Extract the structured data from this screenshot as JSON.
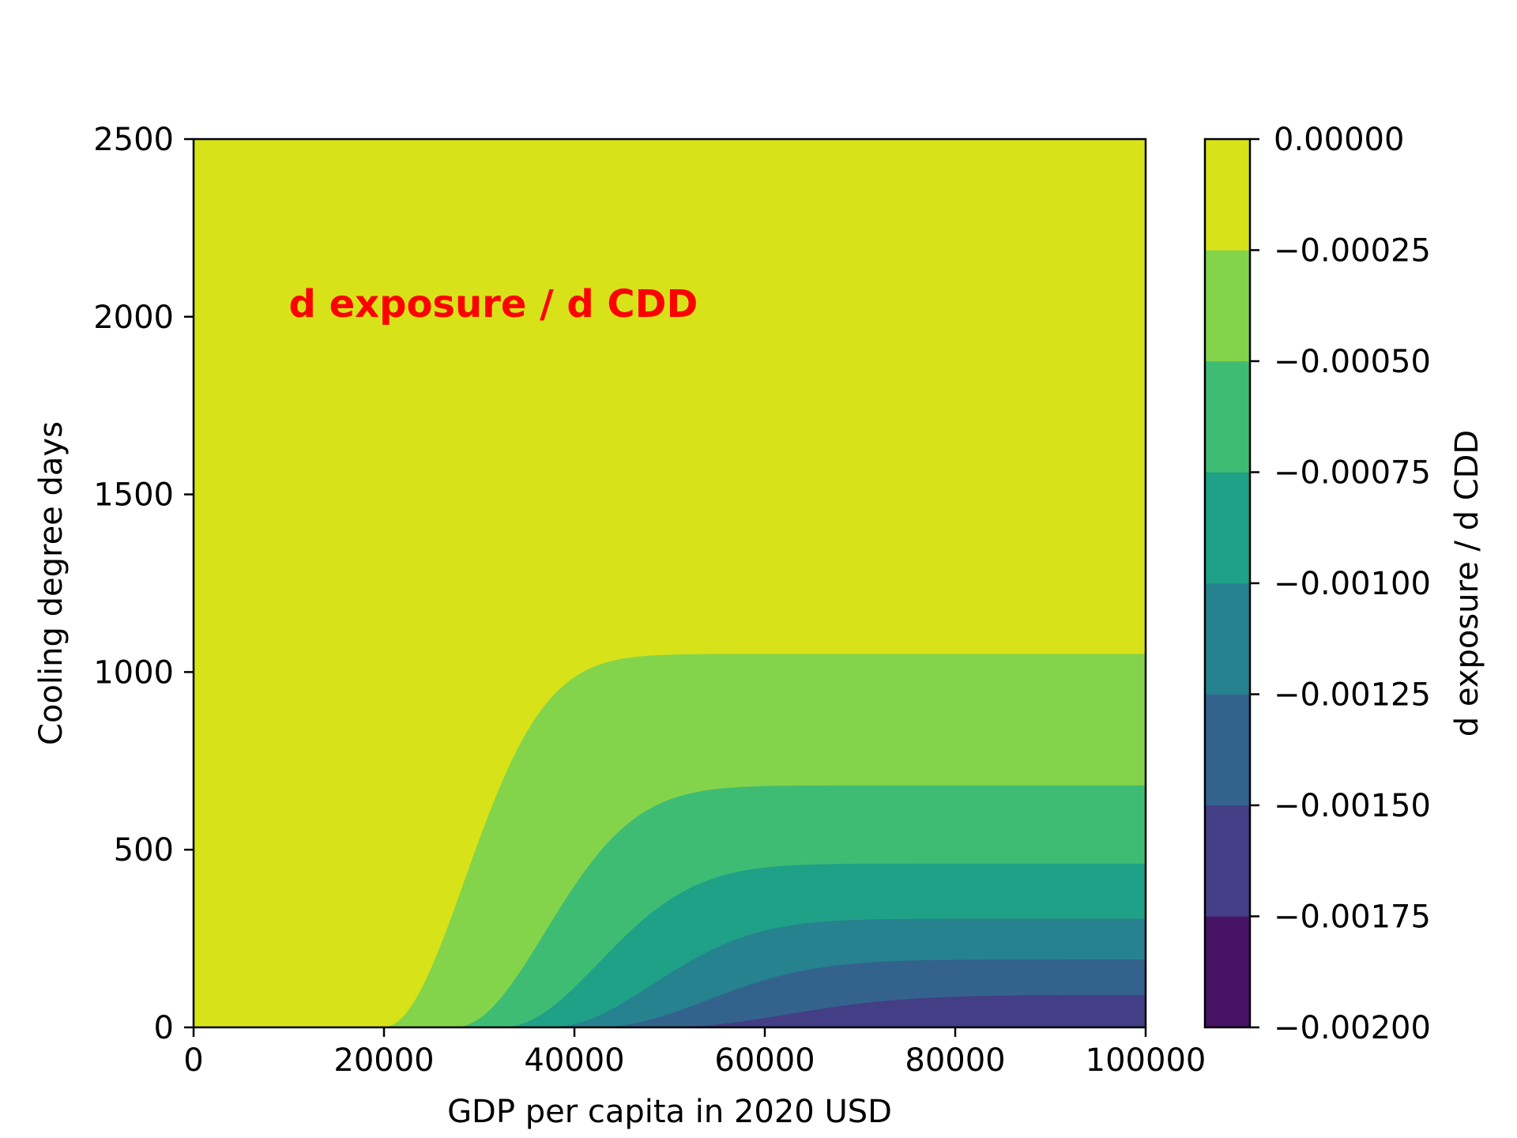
{
  "chart_data": {
    "type": "contour",
    "annotation": "d exposure / d CDD",
    "annotation_color": "#ff0000",
    "annotation_pos": {
      "x": 10000,
      "y": 2000
    },
    "xlabel": "GDP per capita in 2020 USD",
    "ylabel": "Cooling degree days",
    "xlim": [
      0,
      100000
    ],
    "ylim": [
      0,
      2500
    ],
    "x_ticks": [
      0,
      20000,
      40000,
      60000,
      80000,
      100000
    ],
    "x_tick_labels": [
      "0",
      "20000",
      "40000",
      "60000",
      "80000",
      "100000"
    ],
    "y_ticks": [
      0,
      500,
      1000,
      1500,
      2000,
      2500
    ],
    "y_tick_labels": [
      "0",
      "500",
      "1000",
      "1500",
      "2000",
      "2500"
    ],
    "colorbar": {
      "label": "d exposure / d CDD",
      "levels": [
        -0.002,
        -0.00175,
        -0.0015,
        -0.00125,
        -0.001,
        -0.00075,
        -0.0005,
        -0.00025,
        0.0
      ],
      "tick_labels": [
        "−0.00200",
        "−0.00175",
        "−0.00150",
        "−0.00125",
        "−0.00100",
        "−0.00075",
        "−0.00050",
        "−0.00025",
        "0.00000"
      ],
      "colors": [
        "#471365",
        "#433e85",
        "#33638d",
        "#26828e",
        "#1fa187",
        "#3fbc73",
        "#84d44b",
        "#d8e219"
      ]
    },
    "contour_boundaries": [
      {
        "level": -0.00025,
        "x_start": 20000,
        "y_plateau": 1050
      },
      {
        "level": -0.0005,
        "x_start": 27500,
        "y_plateau": 680
      },
      {
        "level": -0.00075,
        "x_start": 32500,
        "y_plateau": 460
      },
      {
        "level": -0.001,
        "x_start": 37500,
        "y_plateau": 305
      },
      {
        "level": -0.00125,
        "x_start": 42500,
        "y_plateau": 190
      },
      {
        "level": -0.0015,
        "x_start": 50000,
        "y_plateau": 90
      },
      {
        "level": -0.00175,
        "x_start": 90000,
        "y_plateau": 5
      }
    ]
  }
}
